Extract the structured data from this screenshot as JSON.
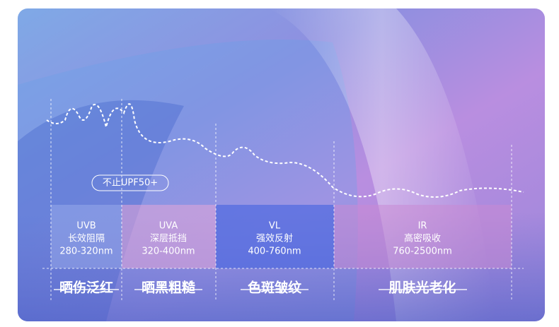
{
  "badge": "不止UPF50+",
  "bands": [
    {
      "name": "UVB",
      "desc": "长效阻隔",
      "range": "280-320nm",
      "effect": "晒伤泛红"
    },
    {
      "name": "UVA",
      "desc": "深层抵挡",
      "range": "320-400nm",
      "effect": "晒黑粗糙"
    },
    {
      "name": "VL",
      "desc": "强效反射",
      "range": "400-760nm",
      "effect": "色斑皱纹"
    },
    {
      "name": "IR",
      "desc": "高密吸收",
      "range": "760-2500nm",
      "effect": "肌肤光老化"
    }
  ]
}
